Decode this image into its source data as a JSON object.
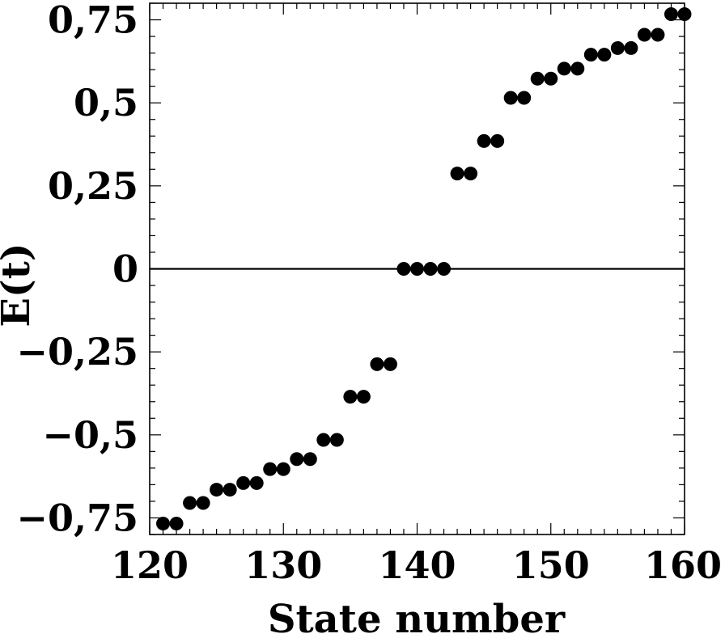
{
  "chart_data": {
    "type": "scatter",
    "title": "",
    "xlabel": "State number",
    "ylabel": "E(t)",
    "xlim": [
      120,
      160
    ],
    "ylim": [
      -0.8,
      0.8
    ],
    "x_ticks": [
      {
        "value": 120,
        "label": "120"
      },
      {
        "value": 130,
        "label": "130"
      },
      {
        "value": 140,
        "label": "140"
      },
      {
        "value": 150,
        "label": "150"
      },
      {
        "value": 160,
        "label": "160"
      }
    ],
    "y_ticks": [
      {
        "value": 0.75,
        "label": "0,75"
      },
      {
        "value": 0.5,
        "label": "0,5"
      },
      {
        "value": 0.25,
        "label": "0,25"
      },
      {
        "value": 0,
        "label": "0"
      },
      {
        "value": -0.25,
        "label": "−0,25"
      },
      {
        "value": -0.5,
        "label": "−0,5"
      },
      {
        "value": -0.75,
        "label": "−0,75"
      }
    ],
    "reference_line_y": 0,
    "series": [
      {
        "x": [
          121,
          122,
          123,
          124,
          125,
          126,
          127,
          128,
          129,
          130,
          131,
          132,
          133,
          134,
          135,
          136,
          137,
          138,
          139,
          140,
          141,
          142,
          143,
          144,
          145,
          146,
          147,
          148,
          149,
          150,
          151,
          152,
          153,
          154,
          155,
          156,
          157,
          158,
          159,
          160
        ],
        "y": [
          -0.767,
          -0.767,
          -0.705,
          -0.705,
          -0.665,
          -0.665,
          -0.645,
          -0.645,
          -0.603,
          -0.603,
          -0.573,
          -0.573,
          -0.515,
          -0.515,
          -0.385,
          -0.385,
          -0.287,
          -0.287,
          0,
          0,
          0,
          0,
          0.287,
          0.287,
          0.385,
          0.385,
          0.515,
          0.515,
          0.573,
          0.573,
          0.603,
          0.603,
          0.645,
          0.645,
          0.665,
          0.665,
          0.705,
          0.705,
          0.767,
          0.767
        ]
      }
    ],
    "colors": {
      "points": "#000000",
      "axes": "#000000",
      "background": "#ffffff"
    },
    "grid": false,
    "legend": "none"
  }
}
